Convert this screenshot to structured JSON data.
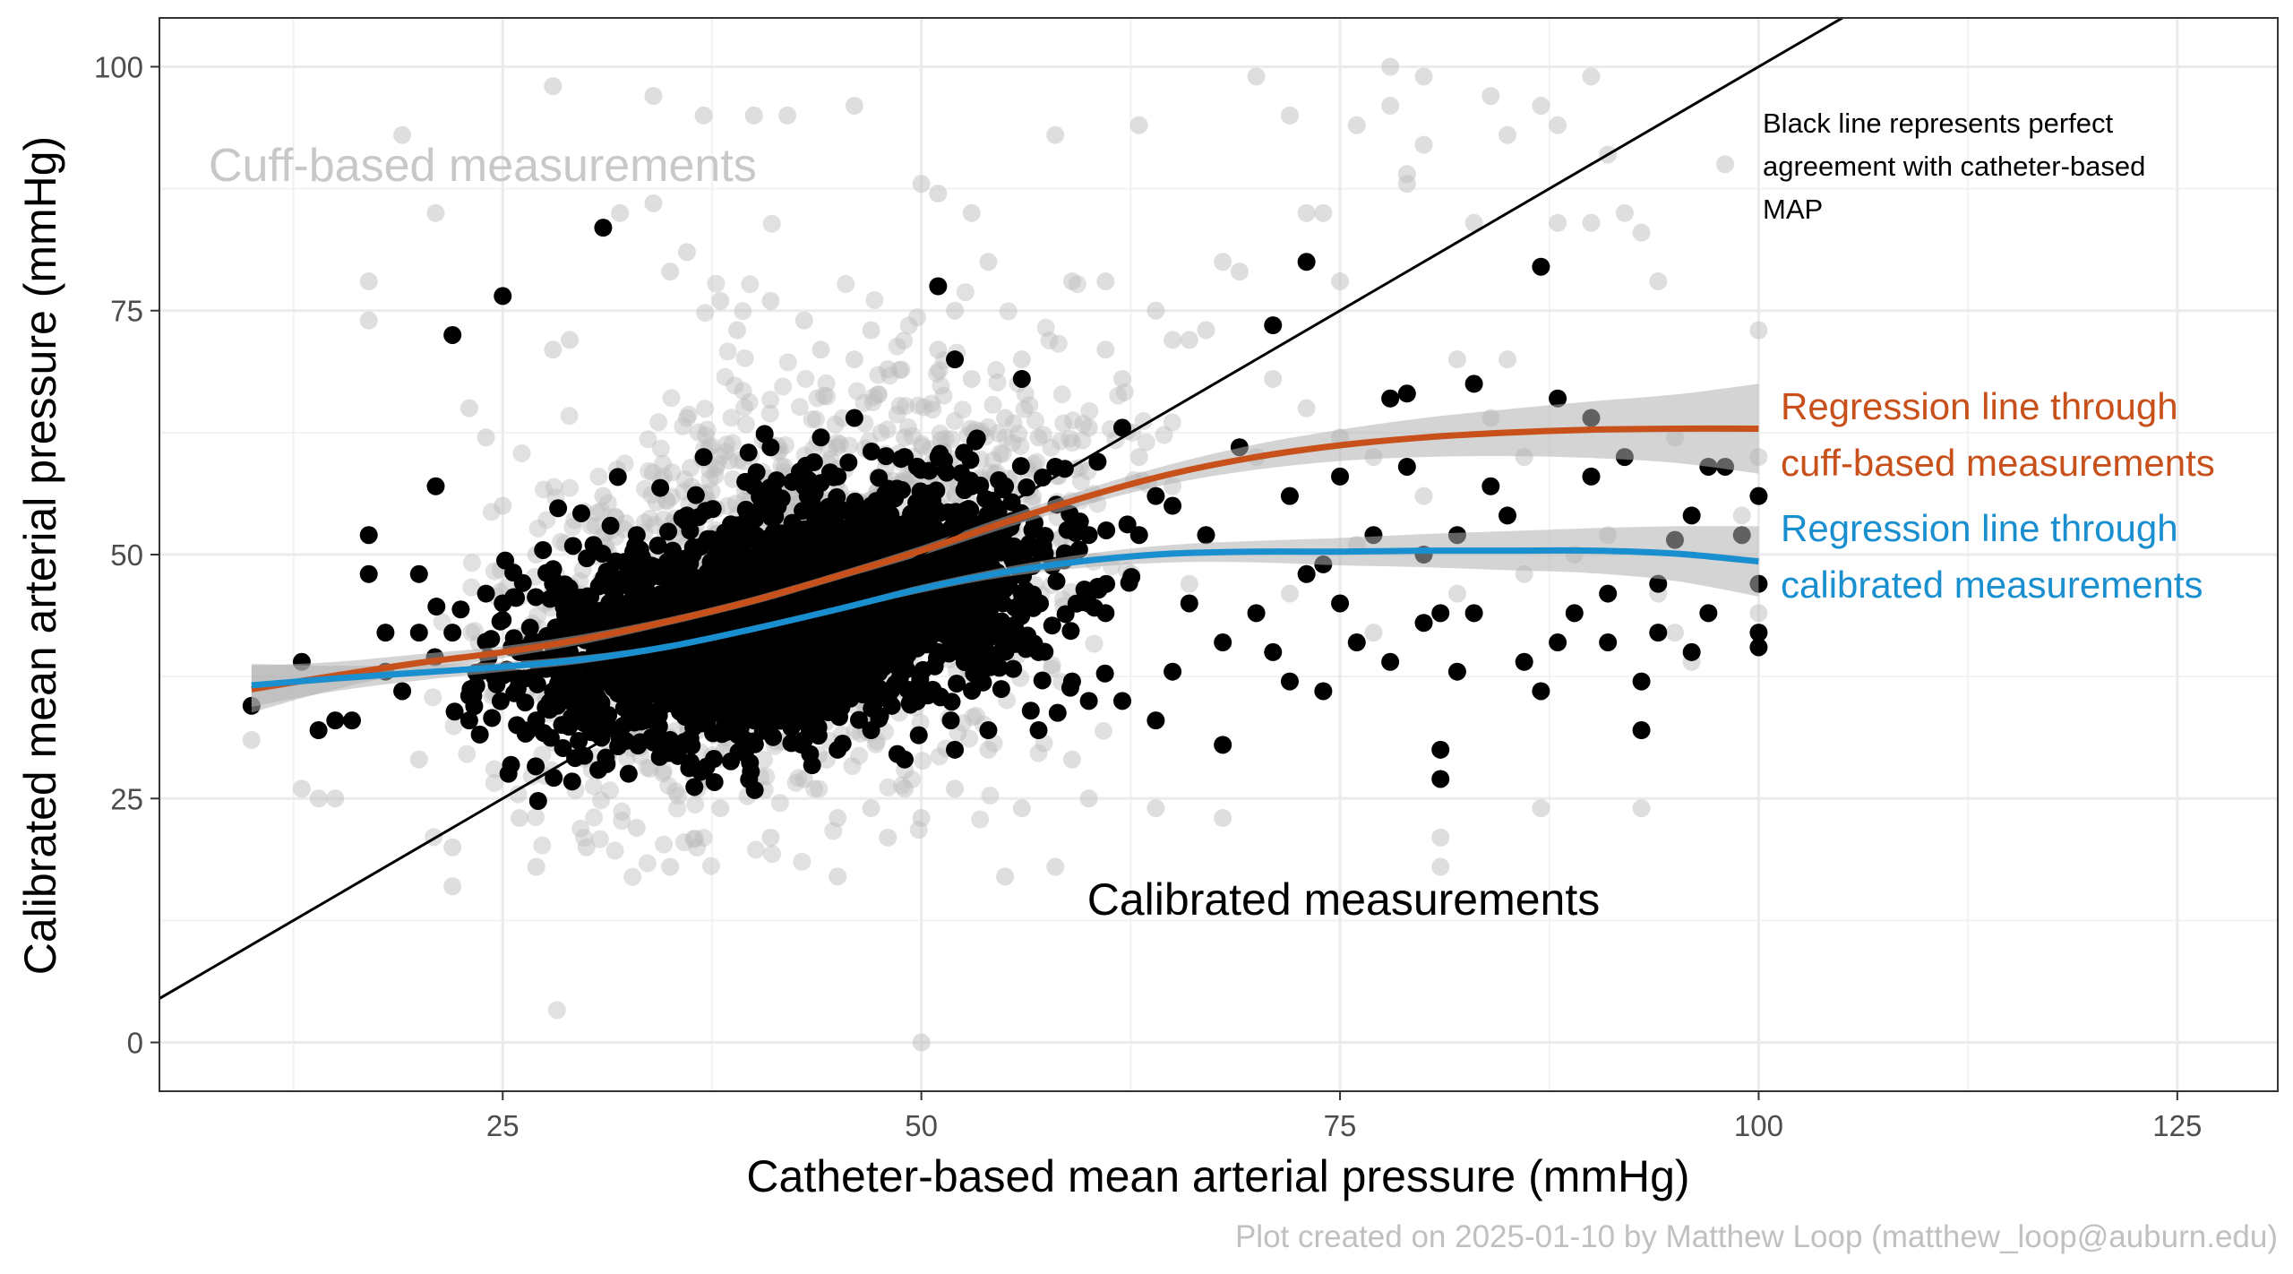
{
  "chart_data": {
    "type": "scatter",
    "title": "",
    "xlabel": "Catheter-based mean arterial pressure (mmHg)",
    "ylabel": "Calibrated mean arterial pressure (mmHg)",
    "xlim": [
      4.5,
      131
    ],
    "ylim": [
      -5,
      105
    ],
    "x_ticks": [
      25,
      50,
      75,
      100,
      125
    ],
    "y_ticks": [
      0,
      25,
      50,
      75,
      100
    ],
    "grid": true,
    "legend": "none",
    "caption": "Plot created on 2025-01-10 by Matthew Loop (matthew_loop@auburn.edu)",
    "annotations": {
      "cuff_label": "Cuff-based measurements",
      "calibrated_label": "Calibrated measurements",
      "identity_note_lines": [
        "Black line represents perfect",
        "agreement with catheter-based",
        "MAP"
      ],
      "cuff_reg_lines": [
        "Regression line through",
        "cuff-based measurements"
      ],
      "cal_reg_lines": [
        "Regression line through",
        "calibrated measurements"
      ]
    },
    "colors": {
      "cuff_points": "#bdbdbd",
      "calibrated_points": "#000000",
      "cuff_regression": "#c8501a",
      "calibrated_regression": "#1a8fcf",
      "confidence_band": "#b0b0b0",
      "identity_line": "#000000",
      "cuff_label_text": "#c8c8c8",
      "caption_text": "#c0c0c0"
    },
    "identity_line": {
      "slope": 1,
      "intercept": 0
    },
    "series": [
      {
        "name": "Regression line through cuff-based measurements",
        "kind": "line",
        "x": [
          10,
          15,
          20,
          25,
          30,
          35,
          40,
          45,
          50,
          55,
          60,
          65,
          70,
          75,
          80,
          85,
          90,
          95,
          100
        ],
        "y": [
          36.2,
          37.6,
          38.9,
          40.0,
          41.4,
          43.2,
          45.3,
          47.8,
          50.4,
          53.3,
          56.0,
          58.3,
          60.0,
          61.2,
          62.0,
          62.5,
          62.8,
          62.9,
          62.9
        ],
        "band_half_width": [
          2.4,
          1.4,
          0.9,
          0.6,
          0.5,
          0.4,
          0.4,
          0.4,
          0.5,
          0.6,
          0.8,
          1.0,
          1.3,
          1.6,
          2.0,
          2.4,
          2.9,
          3.5,
          4.6
        ]
      },
      {
        "name": "Regression line through calibrated measurements",
        "kind": "line",
        "x": [
          10,
          15,
          20,
          25,
          30,
          35,
          40,
          45,
          50,
          55,
          60,
          65,
          70,
          75,
          80,
          85,
          90,
          95,
          100
        ],
        "y": [
          36.6,
          37.3,
          37.9,
          38.5,
          39.3,
          40.6,
          42.4,
          44.4,
          46.5,
          48.2,
          49.4,
          50.1,
          50.3,
          50.3,
          50.4,
          50.4,
          50.4,
          50.1,
          49.3
        ],
        "band_half_width": [
          2.2,
          1.3,
          0.8,
          0.5,
          0.4,
          0.3,
          0.3,
          0.3,
          0.4,
          0.5,
          0.7,
          0.9,
          1.1,
          1.4,
          1.7,
          2.0,
          2.3,
          2.8,
          3.6
        ]
      },
      {
        "name": "Cuff-based measurements",
        "kind": "points",
        "points": [
          [
            10,
            31
          ],
          [
            13,
            26
          ],
          [
            14,
            25
          ],
          [
            15,
            25
          ],
          [
            17,
            78
          ],
          [
            17,
            74
          ],
          [
            19,
            93
          ],
          [
            20,
            29
          ],
          [
            21,
            85
          ],
          [
            22,
            16
          ],
          [
            22,
            20
          ],
          [
            23,
            65
          ],
          [
            24,
            62
          ],
          [
            25,
            55
          ],
          [
            26,
            23
          ],
          [
            27,
            18
          ],
          [
            27,
            50
          ],
          [
            28,
            98
          ],
          [
            28,
            71
          ],
          [
            29,
            72
          ],
          [
            30,
            20
          ],
          [
            31,
            56
          ],
          [
            31,
            44
          ],
          [
            32,
            85
          ],
          [
            33,
            22
          ],
          [
            34,
            97
          ],
          [
            34,
            86
          ],
          [
            35,
            79
          ],
          [
            35,
            18
          ],
          [
            36,
            81
          ],
          [
            36,
            64
          ],
          [
            37,
            27
          ],
          [
            37,
            95
          ],
          [
            38,
            76
          ],
          [
            38,
            24
          ],
          [
            39,
            73
          ],
          [
            40,
            95
          ],
          [
            41,
            76
          ],
          [
            41,
            21
          ],
          [
            42,
            58
          ],
          [
            42,
            95
          ],
          [
            43,
            74
          ],
          [
            43,
            27
          ],
          [
            44,
            71
          ],
          [
            45,
            23
          ],
          [
            45,
            17
          ],
          [
            46,
            96
          ],
          [
            46,
            70
          ],
          [
            47,
            73
          ],
          [
            47,
            24
          ],
          [
            48,
            69
          ],
          [
            48,
            21
          ],
          [
            49,
            62
          ],
          [
            49,
            26
          ],
          [
            50,
            88
          ],
          [
            50,
            23
          ],
          [
            50,
            0
          ],
          [
            51,
            87
          ],
          [
            51,
            71
          ],
          [
            52,
            75
          ],
          [
            52,
            26
          ],
          [
            53,
            85
          ],
          [
            53,
            68
          ],
          [
            54,
            80
          ],
          [
            54,
            30
          ],
          [
            55,
            64
          ],
          [
            55,
            17
          ],
          [
            56,
            70
          ],
          [
            56,
            24
          ],
          [
            57,
            62
          ],
          [
            58,
            93
          ],
          [
            58,
            18
          ],
          [
            59,
            78
          ],
          [
            59,
            29
          ],
          [
            60,
            63
          ],
          [
            60,
            25
          ],
          [
            61,
            78
          ],
          [
            61,
            71
          ],
          [
            62,
            68
          ],
          [
            63,
            60
          ],
          [
            63,
            94
          ],
          [
            64,
            75
          ],
          [
            64,
            24
          ],
          [
            65,
            72
          ],
          [
            65,
            57
          ],
          [
            66,
            72
          ],
          [
            66,
            47
          ],
          [
            67,
            73
          ],
          [
            68,
            80
          ],
          [
            68,
            23
          ],
          [
            69,
            79
          ],
          [
            70,
            60
          ],
          [
            70,
            99
          ],
          [
            71,
            68
          ],
          [
            72,
            46
          ],
          [
            72,
            95
          ],
          [
            73,
            85
          ],
          [
            73,
            65
          ],
          [
            74,
            85
          ],
          [
            75,
            78
          ],
          [
            75,
            62
          ],
          [
            76,
            51
          ],
          [
            76,
            94
          ],
          [
            77,
            60
          ],
          [
            77,
            42
          ],
          [
            78,
            100
          ],
          [
            78,
            96
          ],
          [
            79,
            88
          ],
          [
            79,
            89
          ],
          [
            80,
            99
          ],
          [
            80,
            92
          ],
          [
            80,
            56
          ],
          [
            81,
            21
          ],
          [
            81,
            18
          ],
          [
            82,
            70
          ],
          [
            82,
            46
          ],
          [
            83,
            84
          ],
          [
            84,
            97
          ],
          [
            84,
            64
          ],
          [
            85,
            93
          ],
          [
            85,
            70
          ],
          [
            86,
            60
          ],
          [
            86,
            48
          ],
          [
            87,
            96
          ],
          [
            87,
            24
          ],
          [
            88,
            94
          ],
          [
            88,
            84
          ],
          [
            89,
            50
          ],
          [
            90,
            99
          ],
          [
            90,
            84
          ],
          [
            91,
            91
          ],
          [
            91,
            52
          ],
          [
            92,
            85
          ],
          [
            93,
            83
          ],
          [
            93,
            24
          ],
          [
            94,
            78
          ],
          [
            94,
            46
          ],
          [
            95,
            62
          ],
          [
            95,
            42
          ],
          [
            96,
            39
          ],
          [
            97,
            59
          ],
          [
            98,
            90
          ],
          [
            99,
            54
          ],
          [
            100,
            73
          ],
          [
            100,
            60
          ],
          [
            100,
            44
          ]
        ]
      },
      {
        "name": "Calibrated measurements",
        "kind": "points",
        "points": [
          [
            10,
            34.5
          ],
          [
            13,
            39
          ],
          [
            14,
            32
          ],
          [
            15,
            33
          ],
          [
            16,
            33
          ],
          [
            17,
            52
          ],
          [
            17,
            48
          ],
          [
            18,
            42
          ],
          [
            18,
            38
          ],
          [
            19,
            36
          ],
          [
            20,
            48
          ],
          [
            20,
            42
          ],
          [
            21,
            57
          ],
          [
            22,
            72.5
          ],
          [
            22,
            42
          ],
          [
            23,
            33
          ],
          [
            24,
            46
          ],
          [
            25,
            76.5
          ],
          [
            25,
            45
          ],
          [
            26,
            40
          ],
          [
            27,
            41
          ],
          [
            27,
            33
          ],
          [
            28,
            36
          ],
          [
            28,
            47
          ],
          [
            29,
            40
          ],
          [
            29,
            35
          ],
          [
            30,
            43
          ],
          [
            31,
            83.5
          ],
          [
            31,
            37
          ],
          [
            32,
            45
          ],
          [
            33,
            52
          ],
          [
            34,
            40
          ],
          [
            35,
            31
          ],
          [
            36,
            54
          ],
          [
            37,
            60
          ],
          [
            38,
            47
          ],
          [
            39,
            53
          ],
          [
            40,
            57
          ],
          [
            40,
            33
          ],
          [
            41,
            61
          ],
          [
            42,
            48
          ],
          [
            43,
            57
          ],
          [
            43,
            31
          ],
          [
            44,
            62
          ],
          [
            45,
            58
          ],
          [
            45,
            30
          ],
          [
            46,
            64
          ],
          [
            47,
            55
          ],
          [
            47,
            32
          ],
          [
            48,
            48
          ],
          [
            49,
            60
          ],
          [
            49,
            29
          ],
          [
            50,
            51
          ],
          [
            51,
            77.5
          ],
          [
            51,
            40
          ],
          [
            52,
            70
          ],
          [
            52,
            30
          ],
          [
            53,
            57
          ],
          [
            54,
            54
          ],
          [
            54,
            32
          ],
          [
            55,
            57
          ],
          [
            56,
            46
          ],
          [
            56,
            68
          ],
          [
            57,
            40
          ],
          [
            57,
            32
          ],
          [
            58,
            59
          ],
          [
            59,
            37
          ],
          [
            60,
            52
          ],
          [
            60,
            35
          ],
          [
            61,
            44
          ],
          [
            62,
            63
          ],
          [
            62,
            35
          ],
          [
            63,
            52
          ],
          [
            64,
            56
          ],
          [
            64,
            33
          ],
          [
            65,
            55
          ],
          [
            65,
            38
          ],
          [
            66,
            45
          ],
          [
            67,
            52
          ],
          [
            68,
            30.5
          ],
          [
            68,
            41
          ],
          [
            69,
            61
          ],
          [
            70,
            44
          ],
          [
            71,
            73.5
          ],
          [
            71,
            40
          ],
          [
            72,
            56
          ],
          [
            72,
            37
          ],
          [
            73,
            80
          ],
          [
            73,
            48
          ],
          [
            74,
            49
          ],
          [
            74,
            36
          ],
          [
            75,
            58
          ],
          [
            75,
            45
          ],
          [
            76,
            41
          ],
          [
            77,
            52
          ],
          [
            78,
            66
          ],
          [
            78,
            39
          ],
          [
            79,
            66.5
          ],
          [
            79,
            59
          ],
          [
            80,
            50
          ],
          [
            80,
            43
          ],
          [
            81,
            30
          ],
          [
            81,
            27
          ],
          [
            81,
            44
          ],
          [
            82,
            52
          ],
          [
            82,
            38
          ],
          [
            83,
            67.5
          ],
          [
            83,
            44
          ],
          [
            84,
            57
          ],
          [
            85,
            54
          ],
          [
            86,
            39
          ],
          [
            87,
            79.5
          ],
          [
            87,
            36
          ],
          [
            88,
            66
          ],
          [
            88,
            41
          ],
          [
            89,
            44
          ],
          [
            90,
            64
          ],
          [
            90,
            58
          ],
          [
            91,
            41
          ],
          [
            91,
            46
          ],
          [
            92,
            60
          ],
          [
            93,
            37
          ],
          [
            93,
            32
          ],
          [
            94,
            47
          ],
          [
            94,
            42
          ],
          [
            95,
            51.5
          ],
          [
            96,
            54
          ],
          [
            96,
            40
          ],
          [
            97,
            59
          ],
          [
            97,
            44
          ],
          [
            98,
            59
          ],
          [
            99,
            52
          ],
          [
            100,
            56
          ],
          [
            100,
            47
          ],
          [
            100,
            42
          ],
          [
            100,
            40.5
          ]
        ]
      }
    ]
  }
}
